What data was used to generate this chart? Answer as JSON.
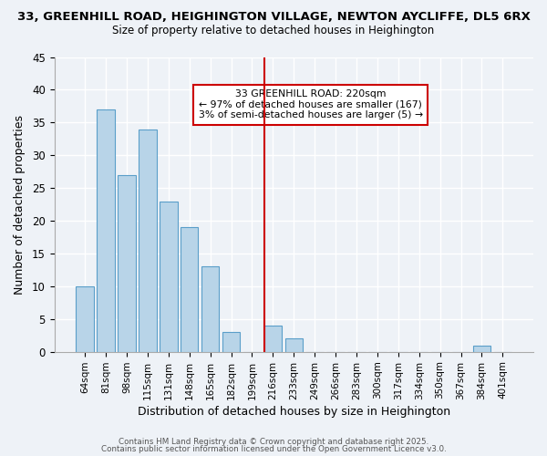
{
  "title_line1": "33, GREENHILL ROAD, HEIGHINGTON VILLAGE, NEWTON AYCLIFFE, DL5 6RX",
  "title_line2": "Size of property relative to detached houses in Heighington",
  "xlabel": "Distribution of detached houses by size in Heighington",
  "ylabel": "Number of detached properties",
  "bar_labels": [
    "64sqm",
    "81sqm",
    "98sqm",
    "115sqm",
    "131sqm",
    "148sqm",
    "165sqm",
    "182sqm",
    "199sqm",
    "216sqm",
    "233sqm",
    "249sqm",
    "266sqm",
    "283sqm",
    "300sqm",
    "317sqm",
    "334sqm",
    "350sqm",
    "367sqm",
    "384sqm",
    "401sqm"
  ],
  "bar_values": [
    10,
    37,
    27,
    34,
    23,
    19,
    13,
    3,
    0,
    4,
    2,
    0,
    0,
    0,
    0,
    0,
    0,
    0,
    0,
    1,
    0
  ],
  "bar_color": "#b8d4e8",
  "bar_edge_color": "#5a9ec9",
  "red_line_index": 9,
  "red_line_color": "#cc0000",
  "annotation_title": "33 GREENHILL ROAD: 220sqm",
  "annotation_line1": "← 97% of detached houses are smaller (167)",
  "annotation_line2": "3% of semi-detached houses are larger (5) →",
  "annotation_box_color": "#ffffff",
  "annotation_box_edge": "#cc0000",
  "ylim": [
    0,
    45
  ],
  "yticks": [
    0,
    5,
    10,
    15,
    20,
    25,
    30,
    35,
    40,
    45
  ],
  "background_color": "#eef2f7",
  "footer_line1": "Contains HM Land Registry data © Crown copyright and database right 2025.",
  "footer_line2": "Contains public sector information licensed under the Open Government Licence v3.0.",
  "fig_width": 6.0,
  "fig_height": 5.0
}
